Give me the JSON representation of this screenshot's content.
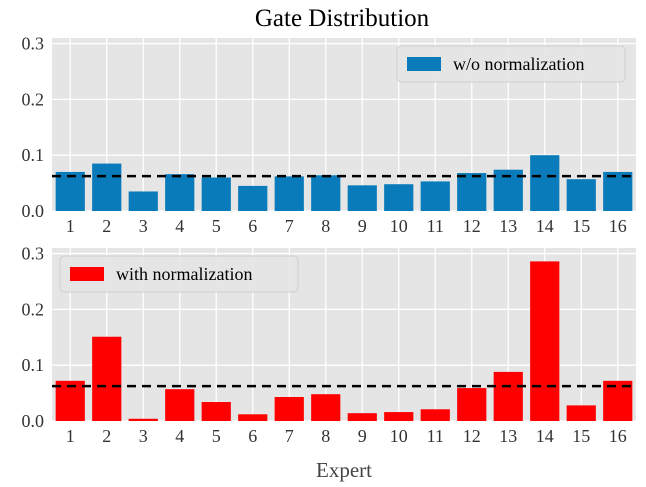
{
  "chart_data": [
    {
      "type": "bar",
      "title": "Gate Distribution",
      "xlabel": "",
      "ylabel": "",
      "ylim": [
        0,
        0.31
      ],
      "yticks": [
        "0.0",
        "0.1",
        "0.2",
        "0.3"
      ],
      "ytick_values": [
        0,
        0.1,
        0.2,
        0.3
      ],
      "categories": [
        "1",
        "2",
        "3",
        "4",
        "5",
        "6",
        "7",
        "8",
        "9",
        "10",
        "11",
        "12",
        "13",
        "14",
        "15",
        "16"
      ],
      "series": [
        {
          "name": "w/o normalization",
          "color": "#0a7bba",
          "values": [
            0.07,
            0.085,
            0.035,
            0.066,
            0.06,
            0.045,
            0.062,
            0.064,
            0.046,
            0.048,
            0.053,
            0.068,
            0.074,
            0.1,
            0.057,
            0.07
          ]
        }
      ],
      "reference_line": {
        "value": 0.0625,
        "style": "dashed",
        "color": "#000000"
      },
      "legend": "top-right",
      "grid": true
    },
    {
      "type": "bar",
      "title": "",
      "xlabel": "Expert",
      "ylabel": "",
      "ylim": [
        0,
        0.31
      ],
      "yticks": [
        "0.0",
        "0.1",
        "0.2",
        "0.3"
      ],
      "ytick_values": [
        0,
        0.1,
        0.2,
        0.3
      ],
      "categories": [
        "1",
        "2",
        "3",
        "4",
        "5",
        "6",
        "7",
        "8",
        "9",
        "10",
        "11",
        "12",
        "13",
        "14",
        "15",
        "16"
      ],
      "series": [
        {
          "name": "with normalization",
          "color": "#ff0000",
          "values": [
            0.072,
            0.151,
            0.004,
            0.057,
            0.034,
            0.012,
            0.043,
            0.048,
            0.014,
            0.016,
            0.021,
            0.059,
            0.088,
            0.286,
            0.028,
            0.072
          ]
        }
      ],
      "reference_line": {
        "value": 0.0625,
        "style": "dashed",
        "color": "#000000"
      },
      "legend": "top-left",
      "grid": true
    }
  ]
}
